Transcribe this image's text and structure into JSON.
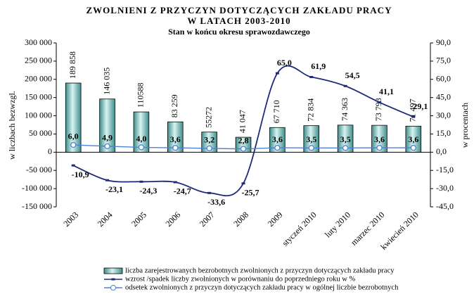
{
  "chart_data": {
    "type": "bar",
    "title": [
      "ZWOLNIENI  Z  PRZYCZYN  DOTYCZĄCYCH  ZAKŁADU  PRACY",
      "W  LATACH  2003-2010"
    ],
    "subtitle": "Stan w końcu okresu  sprawozdawczego",
    "ylabel": "w liczbach bezwzgl.",
    "y2label": "w procentach",
    "categories": [
      "2003",
      "2004",
      "2005",
      "2006",
      "2007",
      "2008",
      "2009",
      "styczeń 2010",
      "luty 2010",
      "marzec 2010",
      "kwiecień 2010"
    ],
    "series": [
      {
        "name": "liczba zarejestrowanych bezrobotnych zwolnionych z przyczyn dotyczących zakładu pracy",
        "type": "bar",
        "axis": "y",
        "color": "#8fd0cc",
        "values": [
          189858,
          146035,
          110588,
          83259,
          55272,
          41047,
          67710,
          72834,
          74363,
          73793,
          71497
        ],
        "value_labels": [
          "189 858",
          "146 035",
          "110588",
          "83 259",
          "55272",
          "41 047",
          "67 710",
          "72 834",
          "74 363",
          "73 793",
          "71 497"
        ]
      },
      {
        "name": "wzrost /spadek liczby zwolnionych w porównaniu do poprzedniego roku w %",
        "type": "line",
        "axis": "y2",
        "color": "#1f2a7a",
        "values": [
          -10.9,
          -23.1,
          -24.3,
          -24.7,
          -33.6,
          -25.7,
          65.0,
          61.9,
          54.5,
          41.1,
          29.1
        ],
        "value_labels": [
          "-10,9",
          "-23,1",
          "-24,3",
          "-24,7",
          "-33,6",
          "-25,7",
          "65,0",
          "61,9",
          "54,5",
          "41,1",
          "29,1"
        ]
      },
      {
        "name": "odsetek zwolnionych z przyczyn dotyczących zakładu pracy w ogólnej liczbie bezrobotnych",
        "type": "line",
        "axis": "y2",
        "color": "#4f81d6",
        "values": [
          6.0,
          4.9,
          4.0,
          3.6,
          3.2,
          2.8,
          3.6,
          3.5,
          3.5,
          3.6,
          3.6
        ],
        "value_labels": [
          "6,0",
          "4,9",
          "4,0",
          "3,6",
          "3,2",
          "2,8",
          "3,6",
          "3,5",
          "3,5",
          "3,6",
          "3,6"
        ]
      }
    ],
    "ylim": [
      -150000,
      300000
    ],
    "yticks": [
      {
        "value": -150000,
        "label": "-150 000"
      },
      {
        "value": -100000,
        "label": "-100 000"
      },
      {
        "value": -50000,
        "label": "-50 000"
      },
      0,
      {
        "value": 50000,
        "label": "50 000"
      },
      {
        "value": 100000,
        "label": "100 000"
      },
      {
        "value": 150000,
        "label": "150 000"
      },
      {
        "value": 200000,
        "label": "200 000"
      },
      {
        "value": 250000,
        "label": "250 000"
      },
      {
        "value": 300000,
        "label": "300 000"
      }
    ],
    "y2lim": [
      -45,
      90
    ],
    "y2ticks": [
      {
        "value": -45,
        "label": "-45,0"
      },
      {
        "value": -30,
        "label": "-30,0"
      },
      {
        "value": -15,
        "label": "-15,0"
      },
      {
        "value": 0,
        "label": "0,0"
      },
      {
        "value": 15,
        "label": "15,0"
      },
      {
        "value": 30,
        "label": "30,0"
      },
      {
        "value": 45,
        "label": "45,0"
      },
      {
        "value": 60,
        "label": "60,0"
      },
      {
        "value": 75,
        "label": "75,0"
      },
      {
        "value": 90,
        "label": "90,0"
      }
    ]
  }
}
